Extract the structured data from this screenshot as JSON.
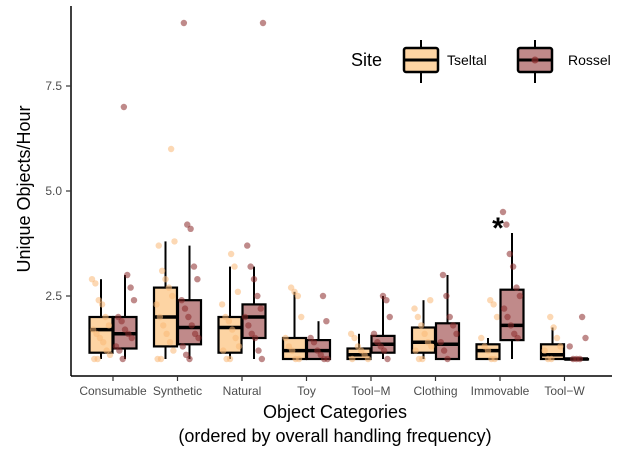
{
  "chart_data": {
    "type": "boxplot",
    "xlabel_line1": "Object Categories",
    "xlabel_line2": "(ordered by overall handling frequency)",
    "ylabel": "Unique Objects/Hour",
    "ylim": [
      0.8,
      9.1
    ],
    "yticks": [
      2.5,
      5.0,
      7.5
    ],
    "ytick_labels": [
      "2.5",
      "5.0",
      "7.5"
    ],
    "grid": false,
    "legend": {
      "title": "Site",
      "placement": "top-right",
      "entries": [
        {
          "name": "Tseltal",
          "fill": "#fdd4a3",
          "point_color": "#f9b877"
        },
        {
          "name": "Rossel",
          "fill": "#c08a8a",
          "point_color": "#8b2a2a"
        }
      ]
    },
    "categories": [
      "Consumable",
      "Synthetic",
      "Natural",
      "Toy",
      "Tool−M",
      "Clothing",
      "Immovable",
      "Tool−W"
    ],
    "annotation": {
      "text": "*",
      "category": "Immovable"
    },
    "series": [
      {
        "name": "Tseltal",
        "boxes": [
          {
            "min": 1.0,
            "q1": 1.15,
            "median": 1.7,
            "q3": 2.0,
            "max": 2.9
          },
          {
            "min": 1.0,
            "q1": 1.3,
            "median": 2.0,
            "q3": 2.7,
            "max": 3.8
          },
          {
            "min": 1.0,
            "q1": 1.15,
            "median": 1.75,
            "q3": 2.0,
            "max": 3.2
          },
          {
            "min": 1.0,
            "q1": 1.0,
            "median": 1.2,
            "q3": 1.5,
            "max": 2.6
          },
          {
            "min": 1.0,
            "q1": 1.0,
            "median": 1.1,
            "q3": 1.25,
            "max": 1.6
          },
          {
            "min": 1.0,
            "q1": 1.15,
            "median": 1.4,
            "q3": 1.75,
            "max": 2.4
          },
          {
            "min": 1.0,
            "q1": 1.0,
            "median": 1.2,
            "q3": 1.35,
            "max": 1.5
          },
          {
            "min": 1.0,
            "q1": 1.0,
            "median": 1.1,
            "q3": 1.35,
            "max": 1.75
          }
        ],
        "points": [
          [
            2.9,
            2.8,
            2.4,
            2.3,
            2.0,
            1.8,
            1.7,
            1.6,
            1.5,
            1.4,
            1.2,
            1.1,
            1.0,
            1.0
          ],
          [
            6.0,
            3.8,
            3.7,
            3.1,
            2.9,
            2.7,
            2.5,
            2.3,
            2.0,
            1.8,
            1.6,
            1.4,
            1.2,
            1.0,
            1.0
          ],
          [
            3.5,
            3.2,
            2.6,
            2.3,
            2.0,
            1.9,
            1.7,
            1.5,
            1.3,
            1.2,
            1.0,
            1.0
          ],
          [
            2.7,
            2.6,
            2.5,
            2.0,
            1.5,
            1.3,
            1.2,
            1.0,
            1.0
          ],
          [
            1.6,
            1.5,
            1.3,
            1.2,
            1.1,
            1.0,
            1.0
          ],
          [
            2.4,
            2.2,
            2.0,
            1.8,
            1.6,
            1.4,
            1.3,
            1.2,
            1.0,
            1.0
          ],
          [
            2.4,
            2.3,
            2.0,
            1.5,
            1.3,
            1.2,
            1.0,
            1.0
          ],
          [
            2.0,
            1.75,
            1.5,
            1.3,
            1.2,
            1.0,
            1.0
          ]
        ]
      },
      {
        "name": "Rossel",
        "boxes": [
          {
            "min": 1.0,
            "q1": 1.25,
            "median": 1.6,
            "q3": 2.0,
            "max": 3.0
          },
          {
            "min": 1.0,
            "q1": 1.35,
            "median": 1.75,
            "q3": 2.4,
            "max": 3.7
          },
          {
            "min": 1.0,
            "q1": 1.5,
            "median": 2.0,
            "q3": 2.3,
            "max": 3.2
          },
          {
            "min": 1.0,
            "q1": 1.0,
            "median": 1.2,
            "q3": 1.45,
            "max": 1.9
          },
          {
            "min": 1.0,
            "q1": 1.15,
            "median": 1.35,
            "q3": 1.55,
            "max": 2.5
          },
          {
            "min": 1.0,
            "q1": 1.0,
            "median": 1.35,
            "q3": 1.85,
            "max": 3.0
          },
          {
            "min": 1.0,
            "q1": 1.45,
            "median": 1.8,
            "q3": 2.65,
            "max": 4.0
          },
          {
            "min": 1.0,
            "q1": 1.0,
            "median": 1.0,
            "q3": 1.0,
            "max": 1.0
          }
        ],
        "points": [
          [
            7.0,
            3.0,
            2.7,
            2.4,
            2.0,
            1.9,
            1.7,
            1.6,
            1.5,
            1.3,
            1.2,
            1.0
          ],
          [
            9.0,
            4.2,
            4.1,
            3.2,
            2.9,
            2.4,
            2.2,
            2.0,
            1.8,
            1.6,
            1.5,
            1.3,
            1.1,
            1.0
          ],
          [
            9.0,
            3.7,
            3.2,
            2.9,
            2.5,
            2.2,
            2.0,
            1.8,
            1.6,
            1.5,
            1.2,
            1.0
          ],
          [
            2.5,
            1.9,
            1.5,
            1.4,
            1.2,
            1.1,
            1.0,
            1.0
          ],
          [
            2.5,
            2.4,
            2.0,
            1.6,
            1.4,
            1.3,
            1.2,
            1.0
          ],
          [
            3.0,
            2.5,
            2.0,
            1.8,
            1.6,
            1.4,
            1.2,
            1.0
          ],
          [
            4.5,
            4.2,
            3.5,
            3.2,
            2.7,
            2.5,
            2.2,
            2.0,
            1.8,
            1.6,
            1.5
          ],
          [
            2.0,
            1.5,
            1.3,
            1.0,
            1.0,
            1.0
          ]
        ]
      }
    ]
  }
}
